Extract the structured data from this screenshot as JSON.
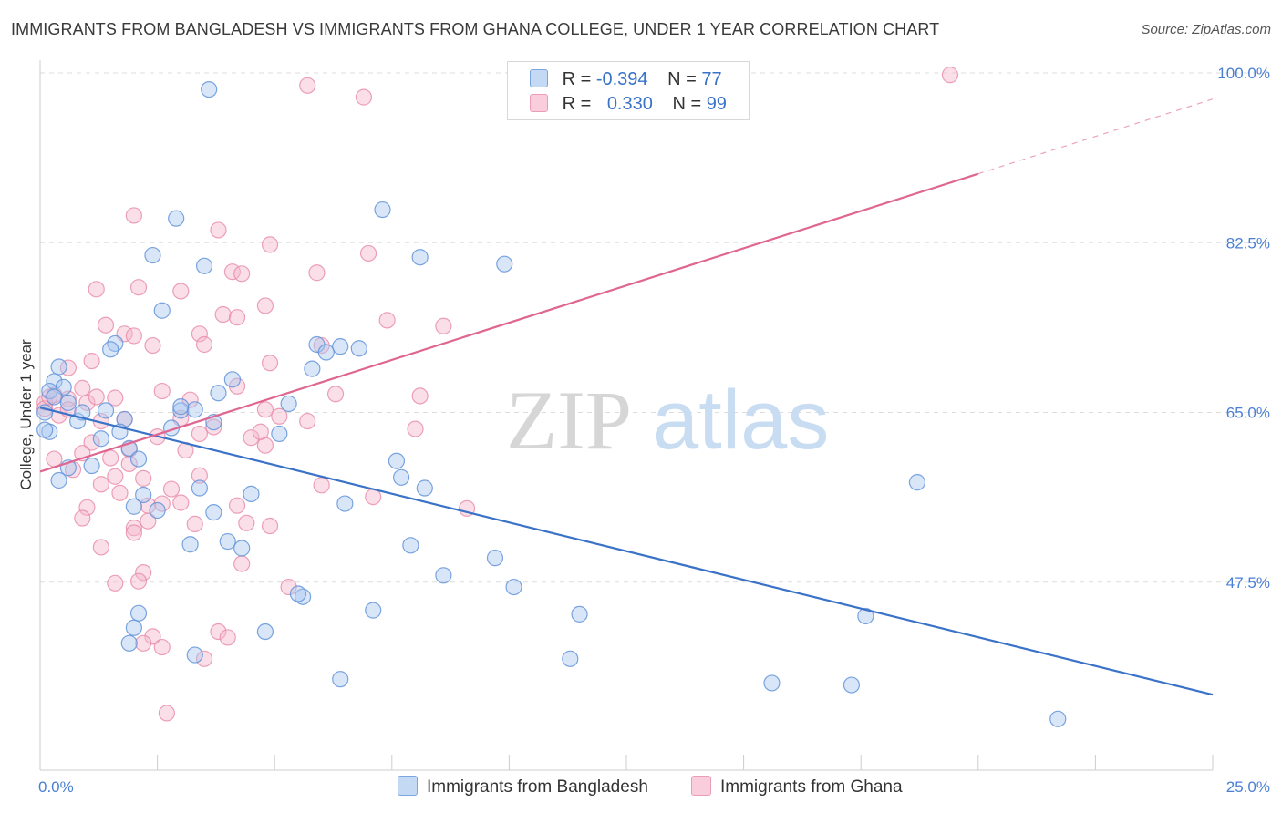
{
  "title": "IMMIGRANTS FROM BANGLADESH VS IMMIGRANTS FROM GHANA COLLEGE, UNDER 1 YEAR CORRELATION CHART",
  "source": "Source: ZipAtlas.com",
  "watermark": {
    "zip": "ZIP",
    "atlas": "atlas"
  },
  "colors": {
    "bangladesh_fill": "#a9c8f0",
    "bangladesh_stroke": "#5b8fd8",
    "bangladesh_line": "#3a72c8",
    "ghana_fill": "#f5b8cb",
    "ghana_stroke": "#e98aa7",
    "ghana_line": "#e06692",
    "tick_text": "#4a7fd4",
    "grid": "#dddddd"
  },
  "legend": {
    "rows": [
      {
        "r_label": "R =",
        "r_value": "-0.394",
        "n_label": "N =",
        "n_value": "77"
      },
      {
        "r_label": "R =",
        "r_value": "0.330",
        "n_label": "N =",
        "n_value": "99"
      }
    ]
  },
  "chart_data": {
    "type": "scatter",
    "ylabel": "College, Under 1 year",
    "xlim": [
      0,
      25
    ],
    "ylim": [
      30,
      100
    ],
    "x_tick_labels": [
      "0.0%",
      "25.0%"
    ],
    "y_ticks": [
      47.5,
      65.0,
      82.5,
      100.0
    ],
    "y_tick_labels": [
      "47.5%",
      "65.0%",
      "82.5%",
      "100.0%"
    ],
    "grid": "horizontal dashed",
    "legend_position": "top-center",
    "series": [
      {
        "name": "Immigrants from Bangladesh",
        "color": "#a9c8f0",
        "trend": {
          "x": [
            0,
            25
          ],
          "y": [
            65.5,
            35.9
          ],
          "dashed_after": null
        },
        "points": [
          [
            3.6,
            98.3
          ],
          [
            7.3,
            85.9
          ],
          [
            2.9,
            85.0
          ],
          [
            2.4,
            81.2
          ],
          [
            3.5,
            80.1
          ],
          [
            9.9,
            80.3
          ],
          [
            2.6,
            75.5
          ],
          [
            1.6,
            72.1
          ],
          [
            1.5,
            71.5
          ],
          [
            5.9,
            72.0
          ],
          [
            6.4,
            71.8
          ],
          [
            6.8,
            71.6
          ],
          [
            0.4,
            69.7
          ],
          [
            5.8,
            69.5
          ],
          [
            0.3,
            68.2
          ],
          [
            4.1,
            68.4
          ],
          [
            0.5,
            67.6
          ],
          [
            0.2,
            67.2
          ],
          [
            3.8,
            67.0
          ],
          [
            0.3,
            66.6
          ],
          [
            5.3,
            65.9
          ],
          [
            1.4,
            65.2
          ],
          [
            3.0,
            65.2
          ],
          [
            3.3,
            65.3
          ],
          [
            0.1,
            65.0
          ],
          [
            1.8,
            64.3
          ],
          [
            0.8,
            64.1
          ],
          [
            0.2,
            63.0
          ],
          [
            1.3,
            62.3
          ],
          [
            1.9,
            61.3
          ],
          [
            2.1,
            60.2
          ],
          [
            7.6,
            60.0
          ],
          [
            0.6,
            59.3
          ],
          [
            1.1,
            59.5
          ],
          [
            7.7,
            58.3
          ],
          [
            8.2,
            57.2
          ],
          [
            0.4,
            58.0
          ],
          [
            3.4,
            57.2
          ],
          [
            2.2,
            56.5
          ],
          [
            4.5,
            56.6
          ],
          [
            18.7,
            57.8
          ],
          [
            2.0,
            55.3
          ],
          [
            2.5,
            54.9
          ],
          [
            3.7,
            54.7
          ],
          [
            6.5,
            55.6
          ],
          [
            4.0,
            51.7
          ],
          [
            3.2,
            51.4
          ],
          [
            4.3,
            51.0
          ],
          [
            7.9,
            51.3
          ],
          [
            10.1,
            47.0
          ],
          [
            9.7,
            50.0
          ],
          [
            8.6,
            48.2
          ],
          [
            5.6,
            46.0
          ],
          [
            5.5,
            46.3
          ],
          [
            7.1,
            44.6
          ],
          [
            11.5,
            44.2
          ],
          [
            2.1,
            44.3
          ],
          [
            17.6,
            44.0
          ],
          [
            2.0,
            42.8
          ],
          [
            4.8,
            42.4
          ],
          [
            3.3,
            40.0
          ],
          [
            1.9,
            41.2
          ],
          [
            6.4,
            37.5
          ],
          [
            11.3,
            39.6
          ],
          [
            15.6,
            37.1
          ],
          [
            17.3,
            36.9
          ],
          [
            21.7,
            33.4
          ],
          [
            0.1,
            63.2
          ],
          [
            2.8,
            63.4
          ],
          [
            3.0,
            65.6
          ],
          [
            0.6,
            66.0
          ],
          [
            0.9,
            65.0
          ],
          [
            6.1,
            71.2
          ],
          [
            8.1,
            81.0
          ],
          [
            3.7,
            64.0
          ],
          [
            5.1,
            62.8
          ],
          [
            1.7,
            63.0
          ]
        ]
      },
      {
        "name": "Immigrants from Ghana",
        "color": "#f5b8cb",
        "trend": {
          "x": [
            0,
            20,
            25
          ],
          "y": [
            58.9,
            89.6,
            97.3
          ],
          "dashed_after": 20
        },
        "points": [
          [
            19.4,
            99.8
          ],
          [
            5.7,
            98.7
          ],
          [
            6.9,
            97.5
          ],
          [
            2.0,
            85.3
          ],
          [
            3.8,
            83.8
          ],
          [
            7.0,
            81.4
          ],
          [
            4.1,
            79.5
          ],
          [
            4.3,
            79.3
          ],
          [
            2.1,
            77.9
          ],
          [
            3.0,
            77.5
          ],
          [
            1.2,
            77.7
          ],
          [
            4.8,
            76.0
          ],
          [
            3.9,
            75.1
          ],
          [
            4.2,
            74.8
          ],
          [
            7.4,
            74.5
          ],
          [
            8.6,
            73.9
          ],
          [
            1.8,
            73.1
          ],
          [
            3.4,
            73.1
          ],
          [
            2.4,
            71.9
          ],
          [
            3.5,
            72.0
          ],
          [
            1.1,
            70.3
          ],
          [
            4.9,
            70.1
          ],
          [
            0.6,
            69.6
          ],
          [
            4.2,
            67.7
          ],
          [
            2.6,
            67.2
          ],
          [
            8.1,
            66.7
          ],
          [
            0.3,
            66.8
          ],
          [
            0.6,
            66.4
          ],
          [
            1.0,
            66.0
          ],
          [
            1.2,
            66.6
          ],
          [
            1.6,
            66.5
          ],
          [
            0.1,
            66.0
          ],
          [
            0.1,
            65.4
          ],
          [
            0.4,
            64.7
          ],
          [
            1.8,
            64.3
          ],
          [
            3.0,
            64.4
          ],
          [
            3.7,
            63.5
          ],
          [
            4.8,
            65.3
          ],
          [
            5.1,
            64.6
          ],
          [
            1.3,
            64.1
          ],
          [
            3.4,
            62.8
          ],
          [
            2.5,
            62.5
          ],
          [
            4.5,
            62.4
          ],
          [
            1.1,
            61.9
          ],
          [
            1.9,
            61.2
          ],
          [
            4.8,
            61.6
          ],
          [
            3.1,
            61.1
          ],
          [
            0.3,
            60.2
          ],
          [
            0.9,
            60.8
          ],
          [
            1.5,
            60.3
          ],
          [
            1.9,
            59.7
          ],
          [
            0.7,
            59.1
          ],
          [
            1.6,
            58.4
          ],
          [
            3.4,
            58.5
          ],
          [
            2.2,
            58.2
          ],
          [
            1.3,
            57.6
          ],
          [
            2.8,
            57.1
          ],
          [
            6.0,
            57.5
          ],
          [
            1.7,
            56.7
          ],
          [
            7.1,
            56.3
          ],
          [
            1.0,
            55.2
          ],
          [
            2.3,
            55.4
          ],
          [
            2.6,
            55.6
          ],
          [
            3.0,
            55.7
          ],
          [
            4.2,
            55.4
          ],
          [
            9.1,
            55.1
          ],
          [
            0.9,
            54.1
          ],
          [
            2.0,
            53.1
          ],
          [
            3.3,
            53.5
          ],
          [
            2.3,
            53.8
          ],
          [
            4.4,
            53.6
          ],
          [
            4.9,
            53.3
          ],
          [
            2.0,
            52.6
          ],
          [
            1.3,
            51.1
          ],
          [
            2.2,
            48.5
          ],
          [
            4.3,
            49.4
          ],
          [
            2.1,
            47.6
          ],
          [
            5.3,
            47.0
          ],
          [
            1.6,
            47.4
          ],
          [
            2.4,
            41.9
          ],
          [
            3.8,
            42.4
          ],
          [
            4.0,
            41.8
          ],
          [
            2.2,
            41.2
          ],
          [
            2.6,
            40.8
          ],
          [
            3.5,
            39.6
          ],
          [
            2.7,
            34.0
          ],
          [
            8.0,
            63.3
          ],
          [
            4.7,
            63.0
          ],
          [
            6.0,
            71.9
          ],
          [
            5.9,
            79.4
          ],
          [
            2.0,
            72.9
          ],
          [
            0.9,
            67.5
          ],
          [
            0.2,
            66.6
          ],
          [
            4.9,
            82.3
          ],
          [
            5.7,
            64.1
          ],
          [
            6.3,
            66.9
          ],
          [
            3.2,
            66.3
          ],
          [
            1.4,
            74.0
          ],
          [
            0.6,
            65.3
          ]
        ]
      }
    ]
  },
  "bottom_legend": {
    "items": [
      "Immigrants from Bangladesh",
      "Immigrants from Ghana"
    ]
  }
}
